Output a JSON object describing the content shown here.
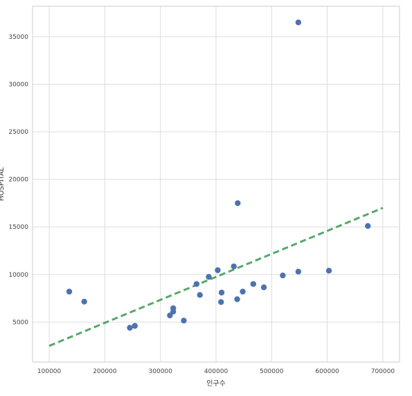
{
  "chart_data": {
    "type": "scatter",
    "title": "",
    "xlabel": "인구수",
    "ylabel": "HOSPITAL",
    "xlim": [
      70000,
      730000
    ],
    "ylim": [
      800,
      38200
    ],
    "xticks": [
      100000,
      200000,
      300000,
      400000,
      500000,
      600000,
      700000
    ],
    "xtick_labels": [
      "100000",
      "200000",
      "300000",
      "400000",
      "500000",
      "600000",
      "700000"
    ],
    "yticks": [
      5000,
      10000,
      15000,
      20000,
      25000,
      30000,
      35000
    ],
    "ytick_labels": [
      "5000",
      "10000",
      "15000",
      "20000",
      "25000",
      "30000",
      "35000"
    ],
    "grid": true,
    "legend": "none",
    "series": [
      {
        "kind": "points",
        "color": "#4c72b0",
        "x": [
          136000,
          163000,
          245000,
          254000,
          317000,
          323000,
          323000,
          342000,
          365000,
          371000,
          387000,
          403000,
          409000,
          410000,
          432000,
          438000,
          439000,
          448000,
          467000,
          486000,
          520000,
          548000,
          548000,
          603000,
          673000
        ],
        "y": [
          8200,
          7150,
          4400,
          4600,
          5700,
          6100,
          6450,
          5150,
          9000,
          7850,
          9750,
          10450,
          7100,
          8100,
          10850,
          7400,
          17500,
          8200,
          9000,
          8650,
          9900,
          10300,
          36500,
          10400,
          15100
        ]
      },
      {
        "kind": "fit-line",
        "color": "#55a868",
        "style": "dashed",
        "x": [
          100000,
          700000
        ],
        "y": [
          2500,
          17000
        ]
      }
    ]
  }
}
